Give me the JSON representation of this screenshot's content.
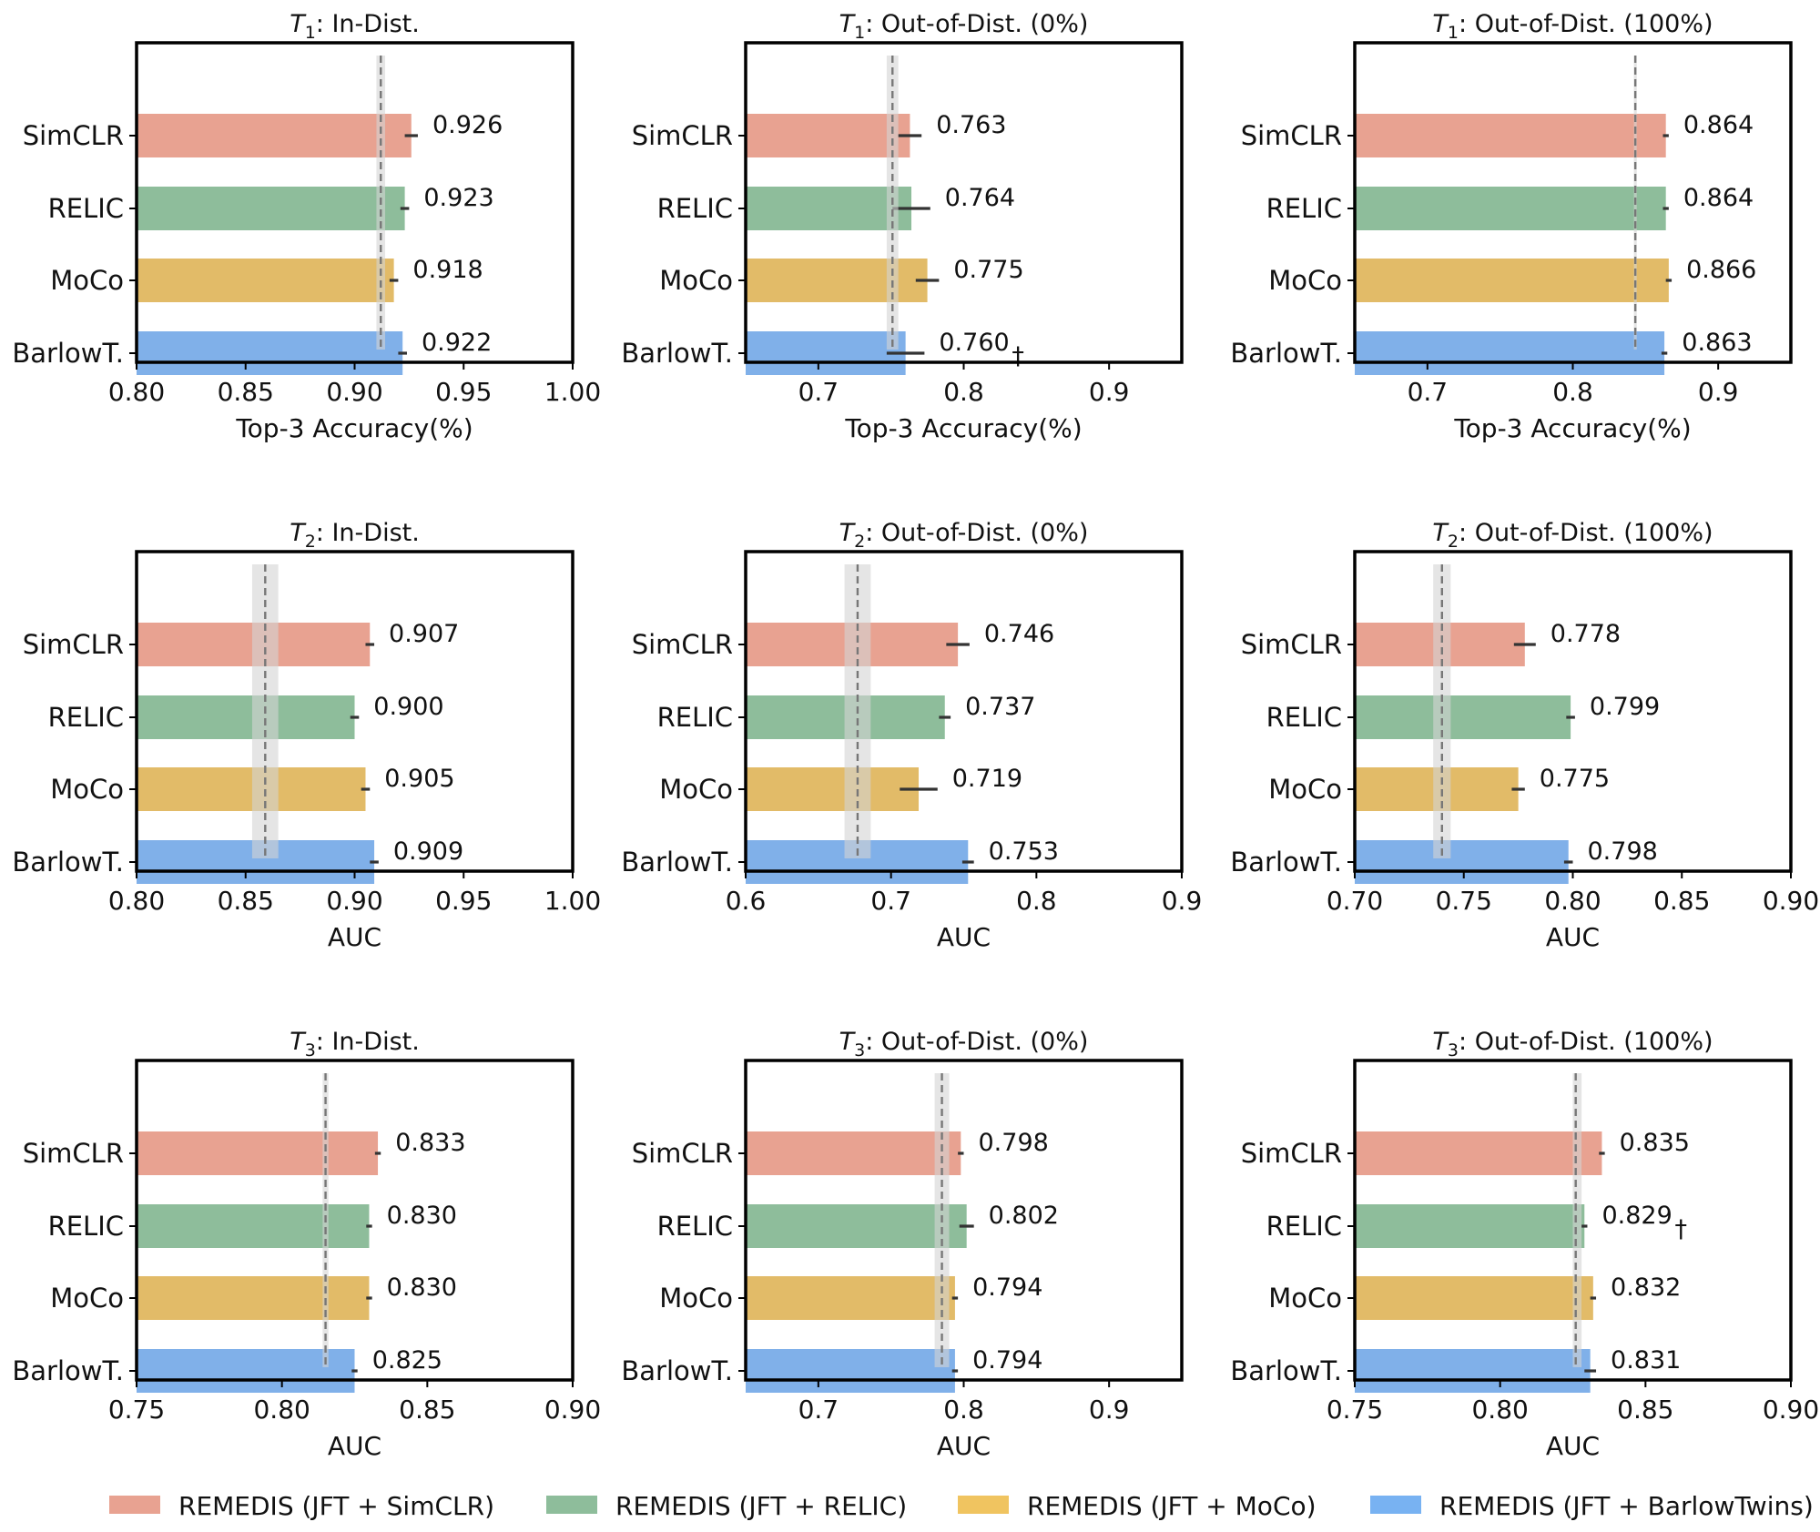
{
  "colors": {
    "SimCLR": "#e8a291",
    "RELIC": "#8ebd9b",
    "MoCo": "#e2bb68",
    "BarlowT.": "#80b0e9",
    "errorbar": "#333333",
    "reference_line": "#777777",
    "reference_band": "#d3d3d3"
  },
  "legend": [
    {
      "label": "REMEDIS (JFT + SimCLR)",
      "color": "#e8a291"
    },
    {
      "label": "REMEDIS (JFT + RELIC)",
      "color": "#8ebd9b"
    },
    {
      "label": "REMEDIS (JFT + MoCo)",
      "color": "#f0c460"
    },
    {
      "label": "REMEDIS (JFT + BarlowTwins)",
      "color": "#78b2f2"
    }
  ],
  "chart_data": [
    {
      "type": "bar",
      "orientation": "horizontal",
      "task": "T",
      "task_sub": "1",
      "title_rest": ": In-Dist.",
      "categories": [
        "SimCLR",
        "RELIC",
        "MoCo",
        "BarlowT."
      ],
      "values": [
        0.926,
        0.923,
        0.918,
        0.922
      ],
      "value_labels": [
        "0.926",
        "0.923",
        "0.918",
        "0.922"
      ],
      "errors": [
        0.003,
        0.002,
        0.002,
        0.002
      ],
      "dagger": [
        false,
        false,
        false,
        false
      ],
      "reference": 0.912,
      "reference_band": [
        0.91,
        0.914
      ],
      "xlim": [
        0.8,
        1.0
      ],
      "xticks": [
        0.8,
        0.85,
        0.9,
        0.95,
        1.0
      ],
      "xtick_labels": [
        "0.80",
        "0.85",
        "0.90",
        "0.95",
        "1.00"
      ],
      "xlabel": "Top-3 Accuracy(%)"
    },
    {
      "type": "bar",
      "orientation": "horizontal",
      "task": "T",
      "task_sub": "1",
      "title_rest": ": Out-of-Dist. (0%)",
      "categories": [
        "SimCLR",
        "RELIC",
        "MoCo",
        "BarlowT."
      ],
      "values": [
        0.763,
        0.764,
        0.775,
        0.76
      ],
      "value_labels": [
        "0.763",
        "0.764",
        "0.775",
        "0.760"
      ],
      "errors": [
        0.008,
        0.013,
        0.008,
        0.013
      ],
      "dagger": [
        false,
        false,
        false,
        true
      ],
      "dagger_symbol": "†",
      "reference": 0.751,
      "reference_band": [
        0.747,
        0.755
      ],
      "xlim": [
        0.65,
        0.95
      ],
      "xticks": [
        0.7,
        0.8,
        0.9
      ],
      "xtick_labels": [
        "0.7",
        "0.8",
        "0.9"
      ],
      "xlabel": "Top-3 Accuracy(%)"
    },
    {
      "type": "bar",
      "orientation": "horizontal",
      "task": "T",
      "task_sub": "1",
      "title_rest": ": Out-of-Dist. (100%)",
      "categories": [
        "SimCLR",
        "RELIC",
        "MoCo",
        "BarlowT."
      ],
      "values": [
        0.864,
        0.864,
        0.866,
        0.863
      ],
      "value_labels": [
        "0.864",
        "0.864",
        "0.866",
        "0.863"
      ],
      "errors": [
        0.002,
        0.002,
        0.002,
        0.002
      ],
      "dagger": [
        false,
        false,
        false,
        false
      ],
      "reference": 0.843,
      "reference_band": [
        0.842,
        0.844
      ],
      "xlim": [
        0.65,
        0.95
      ],
      "xticks": [
        0.7,
        0.8,
        0.9
      ],
      "xtick_labels": [
        "0.7",
        "0.8",
        "0.9"
      ],
      "xlabel": "Top-3 Accuracy(%)"
    },
    {
      "type": "bar",
      "orientation": "horizontal",
      "task": "T",
      "task_sub": "2",
      "title_rest": ": In-Dist.",
      "categories": [
        "SimCLR",
        "RELIC",
        "MoCo",
        "BarlowT."
      ],
      "values": [
        0.907,
        0.9,
        0.905,
        0.909
      ],
      "value_labels": [
        "0.907",
        "0.900",
        "0.905",
        "0.909"
      ],
      "errors": [
        0.002,
        0.002,
        0.002,
        0.002
      ],
      "dagger": [
        false,
        false,
        false,
        false
      ],
      "reference": 0.859,
      "reference_band": [
        0.853,
        0.865
      ],
      "xlim": [
        0.8,
        1.0
      ],
      "xticks": [
        0.8,
        0.85,
        0.9,
        0.95,
        1.0
      ],
      "xtick_labels": [
        "0.80",
        "0.85",
        "0.90",
        "0.95",
        "1.00"
      ],
      "xlabel": "AUC"
    },
    {
      "type": "bar",
      "orientation": "horizontal",
      "task": "T",
      "task_sub": "2",
      "title_rest": ": Out-of-Dist. (0%)",
      "categories": [
        "SimCLR",
        "RELIC",
        "MoCo",
        "BarlowT."
      ],
      "values": [
        0.746,
        0.737,
        0.719,
        0.753
      ],
      "value_labels": [
        "0.746",
        "0.737",
        "0.719",
        "0.753"
      ],
      "errors": [
        0.008,
        0.004,
        0.013,
        0.004
      ],
      "dagger": [
        false,
        false,
        false,
        false
      ],
      "reference": 0.677,
      "reference_band": [
        0.668,
        0.686
      ],
      "xlim": [
        0.6,
        0.9
      ],
      "xticks": [
        0.6,
        0.7,
        0.8,
        0.9
      ],
      "xtick_labels": [
        "0.6",
        "0.7",
        "0.8",
        "0.9"
      ],
      "xlabel": "AUC"
    },
    {
      "type": "bar",
      "orientation": "horizontal",
      "task": "T",
      "task_sub": "2",
      "title_rest": ": Out-of-Dist. (100%)",
      "categories": [
        "SimCLR",
        "RELIC",
        "MoCo",
        "BarlowT."
      ],
      "values": [
        0.778,
        0.799,
        0.775,
        0.798
      ],
      "value_labels": [
        "0.778",
        "0.799",
        "0.775",
        "0.798"
      ],
      "errors": [
        0.005,
        0.002,
        0.003,
        0.002
      ],
      "dagger": [
        false,
        false,
        false,
        false
      ],
      "reference": 0.74,
      "reference_band": [
        0.736,
        0.744
      ],
      "xlim": [
        0.7,
        0.9
      ],
      "xticks": [
        0.7,
        0.75,
        0.8,
        0.85,
        0.9
      ],
      "xtick_labels": [
        "0.70",
        "0.75",
        "0.80",
        "0.85",
        "0.90"
      ],
      "xlabel": "AUC"
    },
    {
      "type": "bar",
      "orientation": "horizontal",
      "task": "T",
      "task_sub": "3",
      "title_rest": ": In-Dist.",
      "categories": [
        "SimCLR",
        "RELIC",
        "MoCo",
        "BarlowT."
      ],
      "values": [
        0.833,
        0.83,
        0.83,
        0.825
      ],
      "value_labels": [
        "0.833",
        "0.830",
        "0.830",
        "0.825"
      ],
      "errors": [
        0.001,
        0.001,
        0.001,
        0.001
      ],
      "dagger": [
        false,
        false,
        false,
        false
      ],
      "reference": 0.815,
      "reference_band": [
        0.814,
        0.816
      ],
      "xlim": [
        0.75,
        0.9
      ],
      "xticks": [
        0.75,
        0.8,
        0.85,
        0.9
      ],
      "xtick_labels": [
        "0.75",
        "0.80",
        "0.85",
        "0.90"
      ],
      "xlabel": "AUC"
    },
    {
      "type": "bar",
      "orientation": "horizontal",
      "task": "T",
      "task_sub": "3",
      "title_rest": ": Out-of-Dist. (0%)",
      "categories": [
        "SimCLR",
        "RELIC",
        "MoCo",
        "BarlowT."
      ],
      "values": [
        0.798,
        0.802,
        0.794,
        0.794
      ],
      "value_labels": [
        "0.798",
        "0.802",
        "0.794",
        "0.794"
      ],
      "errors": [
        0.002,
        0.005,
        0.002,
        0.002
      ],
      "dagger": [
        false,
        false,
        false,
        false
      ],
      "reference": 0.785,
      "reference_band": [
        0.78,
        0.79
      ],
      "xlim": [
        0.65,
        0.95
      ],
      "xticks": [
        0.7,
        0.8,
        0.9
      ],
      "xtick_labels": [
        "0.7",
        "0.8",
        "0.9"
      ],
      "xlabel": "AUC"
    },
    {
      "type": "bar",
      "orientation": "horizontal",
      "task": "T",
      "task_sub": "3",
      "title_rest": ": Out-of-Dist. (100%)",
      "categories": [
        "SimCLR",
        "RELIC",
        "MoCo",
        "BarlowT."
      ],
      "values": [
        0.835,
        0.829,
        0.832,
        0.831
      ],
      "value_labels": [
        "0.835",
        "0.829",
        "0.832",
        "0.831"
      ],
      "errors": [
        0.001,
        0.001,
        0.001,
        0.002
      ],
      "dagger": [
        false,
        true,
        false,
        false
      ],
      "dagger_symbol": "†",
      "reference": 0.826,
      "reference_band": [
        0.825,
        0.828
      ],
      "xlim": [
        0.75,
        0.9
      ],
      "xticks": [
        0.75,
        0.8,
        0.85,
        0.9
      ],
      "xtick_labels": [
        "0.75",
        "0.80",
        "0.85",
        "0.90"
      ],
      "xlabel": "AUC"
    }
  ]
}
